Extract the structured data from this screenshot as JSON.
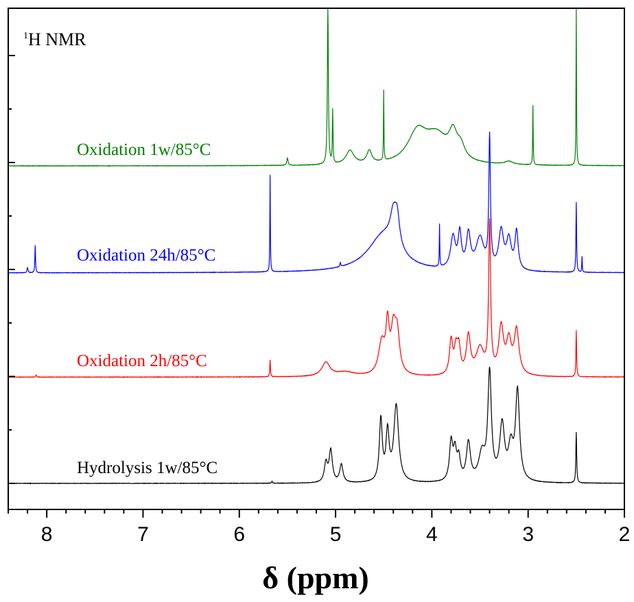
{
  "chart_data": {
    "type": "line",
    "title": "H NMR",
    "title_superscript": "1",
    "xlabel": "δ (ppm)",
    "ylabel": "",
    "xlim": [
      8.4,
      2.0
    ],
    "x_reversed": true,
    "xticks": [
      8,
      7,
      6,
      5,
      4,
      3,
      2
    ],
    "tick_labels": [
      "8",
      "7",
      "6",
      "5",
      "4",
      "3",
      "2"
    ],
    "grid": false,
    "y_axis_ticks_only": true,
    "series": [
      {
        "name": "Hydrolysis 1w/85°C",
        "color": "#000000",
        "baseline": 0.0,
        "peaks": [
          [
            5.1,
            0.18,
            0.02
          ],
          [
            5.05,
            0.3,
            0.02
          ],
          [
            4.94,
            0.17,
            0.02
          ],
          [
            4.53,
            0.58,
            0.018
          ],
          [
            4.46,
            0.45,
            0.02
          ],
          [
            4.37,
            0.72,
            0.03
          ],
          [
            3.8,
            0.36,
            0.02
          ],
          [
            3.76,
            0.26,
            0.02
          ],
          [
            3.72,
            0.2,
            0.02
          ],
          [
            3.62,
            0.36,
            0.025
          ],
          [
            3.48,
            0.25,
            0.04
          ],
          [
            3.4,
            1.0,
            0.022
          ],
          [
            3.27,
            0.52,
            0.03
          ],
          [
            3.18,
            0.3,
            0.03
          ],
          [
            3.11,
            0.84,
            0.025
          ],
          [
            2.5,
            0.48,
            0.005
          ],
          [
            5.66,
            0.02,
            0.005
          ]
        ]
      },
      {
        "name": "Oxidation 2h/85°C",
        "color": "#ff0000",
        "baseline": 1.0,
        "peaks": [
          [
            8.11,
            0.02,
            0.005
          ],
          [
            5.68,
            0.16,
            0.004
          ],
          [
            5.1,
            0.13,
            0.05
          ],
          [
            4.9,
            0.04,
            0.12
          ],
          [
            4.52,
            0.3,
            0.04
          ],
          [
            4.46,
            0.42,
            0.02
          ],
          [
            4.4,
            0.38,
            0.03
          ],
          [
            4.36,
            0.36,
            0.03
          ],
          [
            3.8,
            0.32,
            0.02
          ],
          [
            3.75,
            0.22,
            0.02
          ],
          [
            3.72,
            0.24,
            0.02
          ],
          [
            3.62,
            0.36,
            0.025
          ],
          [
            3.5,
            0.25,
            0.05
          ],
          [
            3.4,
            1.4,
            0.012
          ],
          [
            3.28,
            0.44,
            0.03
          ],
          [
            3.2,
            0.3,
            0.03
          ],
          [
            3.12,
            0.42,
            0.03
          ],
          [
            2.5,
            0.44,
            0.004
          ]
        ]
      },
      {
        "name": "Oxidation 24h/85°C",
        "color": "#0000ff",
        "baseline": 2.0,
        "peaks": [
          [
            8.2,
            0.05,
            0.006
          ],
          [
            8.12,
            0.26,
            0.004
          ],
          [
            5.68,
            0.91,
            0.003
          ],
          [
            4.95,
            0.04,
            0.005
          ],
          [
            4.5,
            0.35,
            0.2
          ],
          [
            4.4,
            0.28,
            0.04
          ],
          [
            4.36,
            0.26,
            0.03
          ],
          [
            3.92,
            0.4,
            0.003
          ],
          [
            3.78,
            0.3,
            0.03
          ],
          [
            3.71,
            0.32,
            0.02
          ],
          [
            3.62,
            0.32,
            0.025
          ],
          [
            3.5,
            0.3,
            0.05
          ],
          [
            3.4,
            1.22,
            0.01
          ],
          [
            3.28,
            0.36,
            0.03
          ],
          [
            3.2,
            0.28,
            0.03
          ],
          [
            3.12,
            0.36,
            0.02
          ],
          [
            2.5,
            0.66,
            0.004
          ],
          [
            2.44,
            0.15,
            0.003
          ]
        ]
      },
      {
        "name": "Oxidation 1w/85°C",
        "color": "#008000",
        "baseline": 3.0,
        "peaks": [
          [
            5.5,
            0.07,
            0.008
          ],
          [
            5.08,
            1.5,
            0.006
          ],
          [
            5.03,
            0.5,
            0.004
          ],
          [
            4.85,
            0.13,
            0.05
          ],
          [
            4.65,
            0.12,
            0.03
          ],
          [
            4.5,
            0.66,
            0.003
          ],
          [
            4.15,
            0.28,
            0.12
          ],
          [
            3.95,
            0.25,
            0.15
          ],
          [
            3.78,
            0.22,
            0.05
          ],
          [
            3.7,
            0.12,
            0.05
          ],
          [
            3.2,
            0.03,
            0.05
          ],
          [
            2.95,
            0.56,
            0.003
          ],
          [
            2.5,
            1.5,
            0.003
          ]
        ]
      }
    ]
  }
}
